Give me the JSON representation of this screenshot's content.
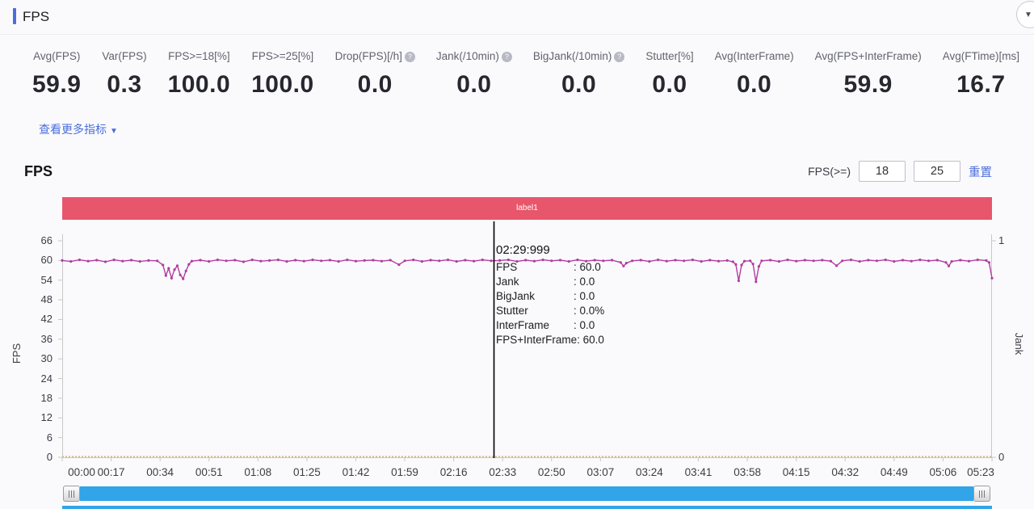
{
  "header": {
    "title": "FPS",
    "collapse_icon": "chevron-down"
  },
  "stats": [
    {
      "label": "Avg(FPS)",
      "value": "59.9",
      "help": false
    },
    {
      "label": "Var(FPS)",
      "value": "0.3",
      "help": false
    },
    {
      "label": "FPS>=18[%]",
      "value": "100.0",
      "help": false
    },
    {
      "label": "FPS>=25[%]",
      "value": "100.0",
      "help": false
    },
    {
      "label": "Drop(FPS)[/h]",
      "value": "0.0",
      "help": true
    },
    {
      "label": "Jank(/10min)",
      "value": "0.0",
      "help": true
    },
    {
      "label": "BigJank(/10min)",
      "value": "0.0",
      "help": true
    },
    {
      "label": "Stutter[%]",
      "value": "0.0",
      "help": false
    },
    {
      "label": "Avg(InterFrame)",
      "value": "0.0",
      "help": false
    },
    {
      "label": "Avg(FPS+InterFrame)",
      "value": "59.9",
      "help": false
    },
    {
      "label": "Avg(FTime)[ms]",
      "value": "16.7",
      "help": false
    }
  ],
  "more_link": {
    "label": "查看更多指标",
    "arrow": "▼"
  },
  "chart_section": {
    "title": "FPS",
    "threshold_label": "FPS(>=)",
    "threshold1": "18",
    "threshold2": "25",
    "reset_label": "重置",
    "banner_label": "label1"
  },
  "tooltip": {
    "time": "02:29:999",
    "rows": [
      {
        "label": "FPS",
        "value": "60.0"
      },
      {
        "label": "Jank",
        "value": "0.0"
      },
      {
        "label": "BigJank",
        "value": "0.0"
      },
      {
        "label": "Stutter",
        "value": "0.0%"
      },
      {
        "label": "InterFrame",
        "value": "0.0"
      },
      {
        "label": "FPS+InterFrame",
        "value": "60.0"
      }
    ]
  },
  "chart_data": {
    "type": "line",
    "title": "FPS",
    "x_axis": {
      "unit": "mm:ss",
      "range_seconds": [
        0,
        323
      ],
      "tick_interval_seconds": 17,
      "tick_labels": [
        "00:00",
        "00:17",
        "00:34",
        "00:51",
        "01:08",
        "01:25",
        "01:42",
        "01:59",
        "02:16",
        "02:33",
        "02:50",
        "03:07",
        "03:24",
        "03:41",
        "03:58",
        "04:15",
        "04:32",
        "04:49",
        "05:06",
        "05:23"
      ]
    },
    "y_left": {
      "label": "FPS",
      "range": [
        0,
        66
      ],
      "ticks": [
        0,
        6,
        12,
        18,
        24,
        30,
        36,
        42,
        48,
        54,
        60,
        66
      ]
    },
    "y_right": {
      "label": "Jank",
      "range": [
        0,
        1
      ],
      "ticks": [
        0,
        1
      ]
    },
    "grid": false,
    "annotation_band": {
      "label": "label1",
      "color": "#e8566b",
      "span": "full-width"
    },
    "cursor": {
      "time_seconds": 150,
      "time_label": "02:29:999"
    },
    "series": [
      {
        "name": "FPS",
        "axis": "left",
        "color": "#b23da0",
        "marker": "dot",
        "points": [
          [
            0,
            60
          ],
          [
            3,
            59.7
          ],
          [
            6,
            60.2
          ],
          [
            9,
            59.8
          ],
          [
            12,
            60.1
          ],
          [
            15,
            59.6
          ],
          [
            18,
            60.2
          ],
          [
            21,
            59.8
          ],
          [
            24,
            60.1
          ],
          [
            27,
            59.7
          ],
          [
            30,
            60
          ],
          [
            33,
            59.9
          ],
          [
            35,
            58.6
          ],
          [
            36,
            55.4
          ],
          [
            37,
            57.6
          ],
          [
            38,
            54.6
          ],
          [
            39,
            57.2
          ],
          [
            40,
            58.4
          ],
          [
            41,
            55.6
          ],
          [
            42,
            54.4
          ],
          [
            43,
            56.8
          ],
          [
            44,
            58.8
          ],
          [
            45,
            59.8
          ],
          [
            48,
            60.1
          ],
          [
            51,
            59.7
          ],
          [
            54,
            60.2
          ],
          [
            57,
            59.9
          ],
          [
            60,
            60.1
          ],
          [
            63,
            59.6
          ],
          [
            66,
            60.2
          ],
          [
            69,
            59.8
          ],
          [
            72,
            60
          ],
          [
            75,
            60.2
          ],
          [
            78,
            59.7
          ],
          [
            81,
            60.1
          ],
          [
            84,
            59.8
          ],
          [
            87,
            60.2
          ],
          [
            90,
            59.9
          ],
          [
            93,
            60.1
          ],
          [
            96,
            59.7
          ],
          [
            99,
            60.2
          ],
          [
            102,
            59.8
          ],
          [
            105,
            60
          ],
          [
            108,
            60.1
          ],
          [
            111,
            59.8
          ],
          [
            114,
            60.1
          ],
          [
            117,
            58.7
          ],
          [
            119,
            59.9
          ],
          [
            122,
            60.2
          ],
          [
            125,
            59.7
          ],
          [
            128,
            60.1
          ],
          [
            131,
            59.9
          ],
          [
            134,
            60.2
          ],
          [
            137,
            59.7
          ],
          [
            140,
            60.1
          ],
          [
            143,
            59.8
          ],
          [
            146,
            60.2
          ],
          [
            149,
            59.9
          ],
          [
            152,
            60
          ],
          [
            155,
            60.2
          ],
          [
            158,
            59.7
          ],
          [
            161,
            60.1
          ],
          [
            164,
            59.8
          ],
          [
            167,
            60.2
          ],
          [
            170,
            59.9
          ],
          [
            173,
            60.1
          ],
          [
            176,
            59.7
          ],
          [
            179,
            60.2
          ],
          [
            182,
            59.8
          ],
          [
            185,
            60.1
          ],
          [
            188,
            59.9
          ],
          [
            191,
            60.1
          ],
          [
            194,
            59.4
          ],
          [
            195,
            58.3
          ],
          [
            196,
            59.2
          ],
          [
            198,
            59.9
          ],
          [
            201,
            60.1
          ],
          [
            204,
            59.7
          ],
          [
            207,
            60.2
          ],
          [
            210,
            59.8
          ],
          [
            213,
            60.1
          ],
          [
            216,
            59.9
          ],
          [
            219,
            60.2
          ],
          [
            222,
            59.7
          ],
          [
            225,
            60.1
          ],
          [
            228,
            59.8
          ],
          [
            231,
            60
          ],
          [
            233,
            59.6
          ],
          [
            234,
            58.8
          ],
          [
            235,
            53.8
          ],
          [
            236,
            58.6
          ],
          [
            237,
            59.8
          ],
          [
            239,
            59.9
          ],
          [
            240,
            58.9
          ],
          [
            241,
            53.5
          ],
          [
            242,
            58.2
          ],
          [
            243,
            59.9
          ],
          [
            246,
            60.1
          ],
          [
            249,
            59.7
          ],
          [
            252,
            60.2
          ],
          [
            255,
            59.8
          ],
          [
            258,
            60.1
          ],
          [
            261,
            59.9
          ],
          [
            264,
            60.1
          ],
          [
            267,
            59.8
          ],
          [
            269,
            58.4
          ],
          [
            271,
            59.9
          ],
          [
            274,
            60.2
          ],
          [
            277,
            59.7
          ],
          [
            280,
            60.1
          ],
          [
            283,
            59.9
          ],
          [
            286,
            60.2
          ],
          [
            289,
            59.7
          ],
          [
            292,
            60.1
          ],
          [
            295,
            59.8
          ],
          [
            298,
            60.2
          ],
          [
            301,
            59.9
          ],
          [
            304,
            60.1
          ],
          [
            307,
            59.4
          ],
          [
            308,
            58.3
          ],
          [
            309,
            59.7
          ],
          [
            312,
            60.1
          ],
          [
            315,
            59.8
          ],
          [
            318,
            60.2
          ],
          [
            321,
            60
          ],
          [
            322,
            59.4
          ],
          [
            323,
            54.6
          ]
        ]
      },
      {
        "name": "Jank",
        "axis": "right",
        "color": "#d6ba8f",
        "style": "dashed",
        "constant_value": 0
      }
    ]
  },
  "colors": {
    "accent_blue": "#4a6edb",
    "banner_red": "#e8566b",
    "fps_line": "#b23da0",
    "jank_line": "#d6ba8f",
    "scrollbar_blue": "#31a5e7"
  }
}
